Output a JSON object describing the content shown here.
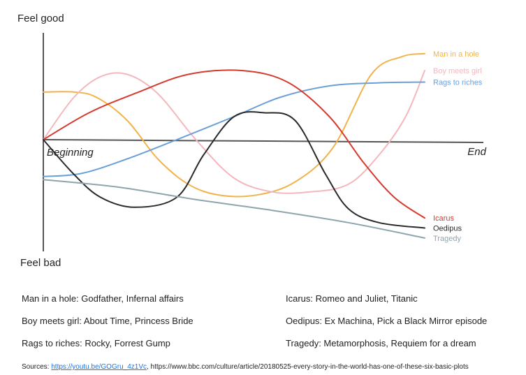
{
  "chart_data": {
    "type": "line",
    "y_top_label": "Feel good",
    "y_bottom_label": "Feel bad",
    "x_start_label": "Beginning",
    "x_end_label": "End",
    "series": [
      {
        "name": "Man in a hole",
        "color": "#f0b44a",
        "points": [
          [
            0,
            0.62
          ],
          [
            8,
            0.62
          ],
          [
            14,
            0.55
          ],
          [
            22,
            0.25
          ],
          [
            30,
            -0.25
          ],
          [
            38,
            -0.58
          ],
          [
            46,
            -0.72
          ],
          [
            56,
            -0.72
          ],
          [
            66,
            -0.55
          ],
          [
            76,
            -0.1
          ],
          [
            86,
            0.85
          ],
          [
            94,
            1.08
          ],
          [
            100,
            1.12
          ]
        ]
      },
      {
        "name": "Boy meets girl",
        "color": "#f4b7bd",
        "points": [
          [
            0,
            0.0
          ],
          [
            8,
            0.55
          ],
          [
            15,
            0.82
          ],
          [
            22,
            0.85
          ],
          [
            30,
            0.6
          ],
          [
            40,
            0.0
          ],
          [
            50,
            -0.5
          ],
          [
            60,
            -0.68
          ],
          [
            70,
            -0.68
          ],
          [
            80,
            -0.58
          ],
          [
            88,
            -0.2
          ],
          [
            95,
            0.3
          ],
          [
            100,
            0.9
          ]
        ]
      },
      {
        "name": "Rags to riches",
        "color": "#6a9fd8",
        "points": [
          [
            0,
            -0.48
          ],
          [
            10,
            -0.44
          ],
          [
            22,
            -0.25
          ],
          [
            35,
            0.0
          ],
          [
            50,
            0.3
          ],
          [
            62,
            0.55
          ],
          [
            75,
            0.7
          ],
          [
            88,
            0.74
          ],
          [
            100,
            0.75
          ]
        ]
      },
      {
        "name": "Icarus",
        "color": "#d63a2f",
        "points": [
          [
            0,
            0.0
          ],
          [
            12,
            0.35
          ],
          [
            25,
            0.62
          ],
          [
            38,
            0.85
          ],
          [
            52,
            0.9
          ],
          [
            64,
            0.75
          ],
          [
            75,
            0.3
          ],
          [
            84,
            -0.3
          ],
          [
            92,
            -0.75
          ],
          [
            100,
            -1.02
          ]
        ]
      },
      {
        "name": "Oedipus",
        "color": "#2a2a2a",
        "points": [
          [
            0,
            0.0
          ],
          [
            8,
            -0.45
          ],
          [
            15,
            -0.75
          ],
          [
            24,
            -0.88
          ],
          [
            35,
            -0.75
          ],
          [
            42,
            -0.2
          ],
          [
            50,
            0.3
          ],
          [
            58,
            0.35
          ],
          [
            66,
            0.25
          ],
          [
            74,
            -0.45
          ],
          [
            80,
            -0.9
          ],
          [
            88,
            -1.08
          ],
          [
            100,
            -1.15
          ]
        ]
      },
      {
        "name": "Tragedy",
        "color": "#8fa5ad",
        "points": [
          [
            0,
            -0.52
          ],
          [
            20,
            -0.62
          ],
          [
            40,
            -0.78
          ],
          [
            60,
            -0.92
          ],
          [
            80,
            -1.08
          ],
          [
            100,
            -1.28
          ]
        ]
      }
    ],
    "examples": [
      {
        "text": "Man in a hole: Godfather, Infernal affairs"
      },
      {
        "text": "Boy meets girl: About Time, Princess Bride"
      },
      {
        "text": "Rags to riches: Rocky, Forrest Gump"
      },
      {
        "text": "Icarus: Romeo and Juliet, Titanic"
      },
      {
        "text": "Oedipus: Ex Machina, Pick a Black Mirror episode"
      },
      {
        "text": "Tragedy: Metamorphosis, Requiem for a dream"
      }
    ],
    "sources": {
      "prefix": "Sources: ",
      "link": "https://youtu.be/GOGru_4z1Vc",
      "rest": ", https://www.bbc.com/culture/article/20180525-every-story-in-the-world-has-one-of-these-six-basic-plots"
    }
  }
}
